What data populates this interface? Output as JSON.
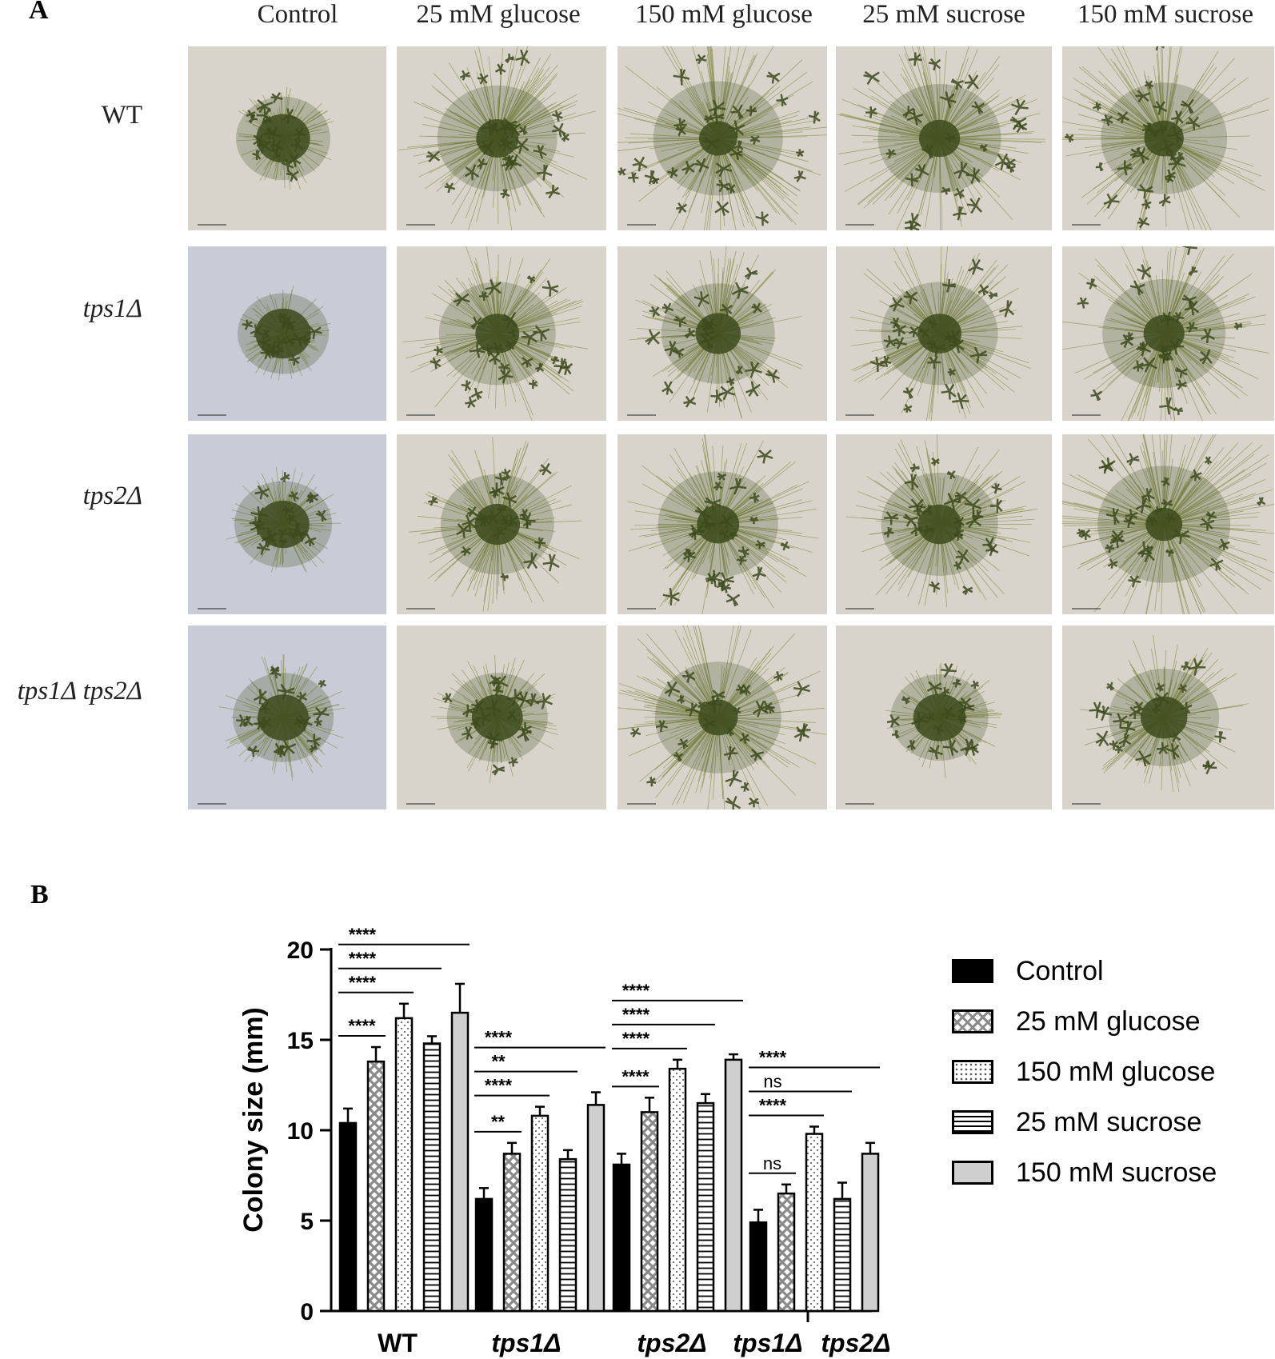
{
  "panel_a": {
    "letter": "A",
    "columns": [
      "Control",
      "25 mM glucose",
      "150 mM glucose",
      "25 mM sucrose",
      "150 mM sucrose"
    ],
    "rows": [
      {
        "label": "WT",
        "italic": false
      },
      {
        "label": "tps1Δ",
        "italic": true
      },
      {
        "label": "tps2Δ",
        "italic": true
      },
      {
        "label": "tps1Δ tps2Δ",
        "italic": true
      }
    ],
    "photo_colors": {
      "background": "#d8d4cc",
      "background_blue": "#c9cbd6",
      "colony": "#3d4a1c",
      "filament": "#8a8f4a"
    }
  },
  "panel_b": {
    "letter": "B"
  },
  "chart_data": {
    "type": "bar",
    "ylabel": "Colony size (mm)",
    "xlabel": "",
    "ylim": [
      0,
      20
    ],
    "yticks": [
      0,
      5,
      10,
      15,
      20
    ],
    "categories": [
      "WT",
      "tps1Δ",
      "tps2Δ",
      "tps1Δ tps2Δ"
    ],
    "series": [
      {
        "name": "Control",
        "pattern": "solid-black",
        "values": [
          10.4,
          6.2,
          8.1,
          4.9
        ],
        "errors": [
          0.8,
          0.6,
          0.6,
          0.7
        ]
      },
      {
        "name": "25 mM glucose",
        "pattern": "crosshatch",
        "values": [
          13.8,
          8.7,
          11.0,
          6.5
        ],
        "errors": [
          0.8,
          0.6,
          0.8,
          0.5
        ]
      },
      {
        "name": "150 mM glucose",
        "pattern": "dots",
        "values": [
          16.2,
          10.8,
          13.4,
          9.8
        ],
        "errors": [
          0.8,
          0.5,
          0.5,
          0.4
        ]
      },
      {
        "name": "25 mM sucrose",
        "pattern": "horizontal-lines",
        "values": [
          14.8,
          8.4,
          11.5,
          6.2
        ],
        "errors": [
          0.4,
          0.5,
          0.5,
          0.9
        ]
      },
      {
        "name": "150 mM sucrose",
        "pattern": "solid-gray",
        "values": [
          16.5,
          11.4,
          13.9,
          8.7
        ],
        "errors": [
          1.6,
          0.7,
          0.3,
          0.6
        ]
      }
    ],
    "significance": [
      {
        "group": 0,
        "from": 0,
        "to": 1,
        "label": "****"
      },
      {
        "group": 0,
        "from": 0,
        "to": 2,
        "label": "****"
      },
      {
        "group": 0,
        "from": 0,
        "to": 3,
        "label": "****"
      },
      {
        "group": 0,
        "from": 0,
        "to": 4,
        "label": "****"
      },
      {
        "group": 1,
        "from": 0,
        "to": 1,
        "label": "**"
      },
      {
        "group": 1,
        "from": 0,
        "to": 2,
        "label": "****"
      },
      {
        "group": 1,
        "from": 0,
        "to": 3,
        "label": "**"
      },
      {
        "group": 1,
        "from": 0,
        "to": 4,
        "label": "****"
      },
      {
        "group": 2,
        "from": 0,
        "to": 1,
        "label": "****"
      },
      {
        "group": 2,
        "from": 0,
        "to": 2,
        "label": "****"
      },
      {
        "group": 2,
        "from": 0,
        "to": 3,
        "label": "****"
      },
      {
        "group": 2,
        "from": 0,
        "to": 4,
        "label": "****"
      },
      {
        "group": 3,
        "from": 0,
        "to": 1,
        "label": "ns"
      },
      {
        "group": 3,
        "from": 0,
        "to": 2,
        "label": "****"
      },
      {
        "group": 3,
        "from": 0,
        "to": 3,
        "label": "ns"
      },
      {
        "group": 3,
        "from": 0,
        "to": 4,
        "label": "****"
      }
    ],
    "legend_position": "right"
  }
}
